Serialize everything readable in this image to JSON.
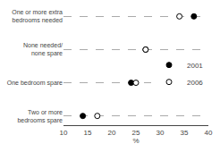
{
  "chart_data": {
    "type": "dot",
    "categories": [
      "Two or more\nbedrooms spare",
      "One bedroom spare",
      "None needed/\nnone spare",
      "One or more extra\nbedrooms needed"
    ],
    "series": [
      {
        "name": "2001",
        "color": "#000000",
        "marker": "circle",
        "values": [
          14,
          24,
          27,
          37
        ]
      },
      {
        "name": "2006",
        "color": "#000000",
        "marker": "circle-open",
        "values": [
          17,
          25,
          27,
          34
        ]
      }
    ],
    "xlabel": "%",
    "xlim": [
      10,
      40
    ],
    "xticks": [
      10,
      15,
      20,
      25,
      30,
      35,
      40
    ],
    "grid": true,
    "legend": "right"
  }
}
